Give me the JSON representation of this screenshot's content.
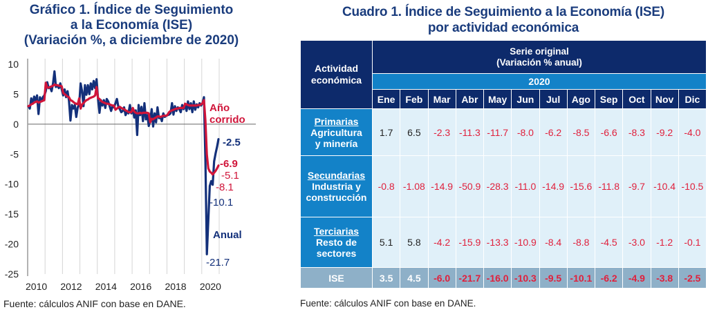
{
  "chart_data": [
    {
      "type": "line",
      "title": "Gráfico 1. Índice de Seguimiento a la Economía (ISE) (Variación %, a diciembre de 2020)",
      "title_lines": [
        "Gráfico 1. Índice de Seguimiento",
        "a la Economía (ISE)",
        "(Variación %, a diciembre de 2020)"
      ],
      "xlabel": "",
      "ylabel": "",
      "ylim": [
        -25,
        10
      ],
      "yticks": [
        10,
        5,
        0,
        -5,
        -10,
        -15,
        -20,
        -25
      ],
      "xlim": [
        2010,
        2021
      ],
      "xticks": [
        "2010",
        "2012",
        "2014",
        "2016",
        "2018",
        "2020"
      ],
      "grid": "vertical",
      "x_start": "2010-01",
      "x_step": "month",
      "series": [
        {
          "name": "Anual",
          "color": "#13307a",
          "values": [
            3.0,
            2.6,
            4.3,
            3.4,
            4.6,
            3.9,
            4.8,
            1.7,
            4.5,
            3.8,
            4.5,
            4.8,
            5.5,
            7.0,
            6.0,
            6.2,
            5.5,
            6.8,
            8.8,
            6.2,
            6.5,
            6.0,
            6.8,
            5.8,
            4.8,
            5.8,
            4.5,
            5.5,
            3.9,
            0.6,
            3.2,
            2.6,
            3.2,
            1.2,
            2.8,
            3.2,
            6.8,
            5.5,
            3.0,
            6.5,
            4.9,
            6.5,
            5.0,
            6.8,
            5.8,
            7.2,
            6.0,
            7.5,
            4.2,
            1.9,
            4.0,
            3.1,
            4.0,
            2.7,
            4.2,
            3.8,
            3.0,
            2.2,
            3.0,
            2.8,
            3.5,
            4.2,
            2.9,
            2.5,
            2.0,
            2.2,
            2.8,
            1.5,
            2.1,
            1.8,
            3.2,
            1.8,
            2.5,
            1.1,
            2.3,
            -1.8,
            3.2,
            1.5,
            2.9,
            0.5,
            3.5,
            0.8,
            1.5,
            -0.3,
            0.6,
            2.5,
            -0.4,
            1.8,
            0.3,
            2.8,
            1.0,
            1.2,
            0.5,
            1.8,
            1.2,
            1.4,
            1.5,
            1.6,
            1.8,
            3.5,
            1.6,
            3.0,
            2.2,
            2.8,
            2.5,
            2.0,
            3.2,
            2.5,
            3.4,
            2.2,
            3.8,
            2.5,
            3.5,
            2.0,
            3.8,
            2.4,
            3.3,
            2.8,
            3.5,
            3.1,
            3.5,
            4.5,
            -6.0,
            -21.7,
            -16.0,
            -10.3,
            -9.5,
            -10.1,
            -6.2,
            -4.9,
            -3.8,
            -2.5
          ]
        },
        {
          "name": "Año corrido",
          "color": "#d0153a",
          "values": [
            3.0,
            3.1,
            3.3,
            3.4,
            3.6,
            3.7,
            3.8,
            3.6,
            3.7,
            3.8,
            3.9,
            4.0,
            6.9,
            6.1,
            6.1,
            6.2,
            6.3,
            6.4,
            6.6,
            6.5,
            6.5,
            6.4,
            6.4,
            6.3,
            5.2,
            5.0,
            4.8,
            4.6,
            4.5,
            4.0,
            3.9,
            3.7,
            3.5,
            3.4,
            3.3,
            4.3,
            2.6,
            3.3,
            3.5,
            3.8,
            4.0,
            4.1,
            4.3,
            4.4,
            4.5,
            4.6,
            4.8,
            6.2,
            4.3,
            4.2,
            3.9,
            3.7,
            3.6,
            3.5,
            3.4,
            3.4,
            3.3,
            3.2,
            3.1,
            3.1,
            2.4,
            2.6,
            2.8,
            2.9,
            2.7,
            2.6,
            2.5,
            2.3,
            2.2,
            2.0,
            2.0,
            2.0,
            2.7,
            2.1,
            1.9,
            1.8,
            1.8,
            1.9,
            1.8,
            1.9,
            1.9,
            1.9,
            1.9,
            1.8,
            0.3,
            0.9,
            0.8,
            1.0,
            1.1,
            1.3,
            1.3,
            1.2,
            1.3,
            1.4,
            1.4,
            1.4,
            1.6,
            2.0,
            2.2,
            2.3,
            2.4,
            2.5,
            2.6,
            2.6,
            2.7,
            2.7,
            2.7,
            2.7,
            3.4,
            3.3,
            3.2,
            3.1,
            3.1,
            3.1,
            3.1,
            3.1,
            3.1,
            3.2,
            3.2,
            3.3,
            3.5,
            4.0,
            0.6,
            -5.1,
            -7.4,
            -7.9,
            -8.1,
            -8.4,
            -8.1,
            -7.8,
            -7.4,
            -6.9
          ]
        }
      ],
      "annotations": [
        {
          "text": "Año",
          "series": "Año corrido",
          "role": "legend"
        },
        {
          "text": "corrido",
          "series": "Año corrido",
          "role": "legend"
        },
        {
          "text": "Anual",
          "series": "Anual",
          "role": "legend"
        },
        {
          "text": "-2.5",
          "series": "Anual",
          "point": "2020-12",
          "bold": true
        },
        {
          "text": "-6.9",
          "series": "Año corrido",
          "point": "2020-12",
          "bold": true
        },
        {
          "text": "-5.1",
          "series": "Año corrido",
          "point": "2020-04",
          "bold": false
        },
        {
          "text": "-8.1",
          "series": "Año corrido",
          "point": "2020-07",
          "bold": false
        },
        {
          "text": "-10.1",
          "series": "Anual",
          "point": "2020-08",
          "bold": false
        },
        {
          "text": "-21.7",
          "series": "Anual",
          "point": "2020-04",
          "bold": false
        }
      ],
      "source": "Fuente: cálculos ANIF con base en DANE."
    },
    {
      "type": "table",
      "title": "Cuadro 1. Índice de Seguimiento a la Economía (ISE) por actividad económica",
      "title_lines": [
        "Cuadro 1. Índice de Seguimiento a la Economía (ISE)",
        "por actividad económica"
      ],
      "row_header_label": [
        "Actividad",
        "económica"
      ],
      "group_header": [
        "Serie original",
        "(Variación % anual)"
      ],
      "year": "2020",
      "columns": [
        "Ene",
        "Feb",
        "Mar",
        "Abr",
        "May",
        "Jun",
        "Jul",
        "Ago",
        "Sep",
        "Oct",
        "Nov",
        "Dic"
      ],
      "rows": [
        {
          "name": "Primarias",
          "desc": [
            "Agricultura",
            "y minería"
          ],
          "values": [
            "1.7",
            "6.5",
            "-2.3",
            "-11.3",
            "-11.7",
            "-8.0",
            "-6.2",
            "-8.5",
            "-6.6",
            "-8.3",
            "-9.2",
            "-4.0"
          ]
        },
        {
          "name": "Secundarias",
          "desc": [
            "Industria y",
            "construcción"
          ],
          "values": [
            "-0.8",
            "-1.08",
            "-14.9",
            "-50.9",
            "-28.3",
            "-11.0",
            "-14.9",
            "-15.6",
            "-11.8",
            "-9.7",
            "-10.4",
            "-10.5"
          ]
        },
        {
          "name": "Terciarias",
          "desc": [
            "Resto de",
            "sectores"
          ],
          "values": [
            "5.1",
            "5.8",
            "-4.2",
            "-15.9",
            "-13.3",
            "-10.9",
            "-8.4",
            "-8.8",
            "-4.5",
            "-3.0",
            "-1.2",
            "-0.1"
          ]
        }
      ],
      "total_row": {
        "name": "ISE",
        "values": [
          "3.5",
          "4.5",
          "-6.0",
          "-21.7",
          "-16.0",
          "-10.3",
          "-9.5",
          "-10.1",
          "-6.2",
          "-4.9",
          "-3.8",
          "-2.5"
        ]
      },
      "source": "Fuente: cálculos ANIF con base en DANE."
    }
  ],
  "colors": {
    "title": "#1a3c7d",
    "anual": "#13307a",
    "ano_corrido": "#d0153a",
    "header_dark": "#0d2a6b",
    "header_light": "#1382c8",
    "cell_bg": "#e0f0f9",
    "ise_row_bg": "#8eb0c8",
    "negative": "#e0203c"
  }
}
